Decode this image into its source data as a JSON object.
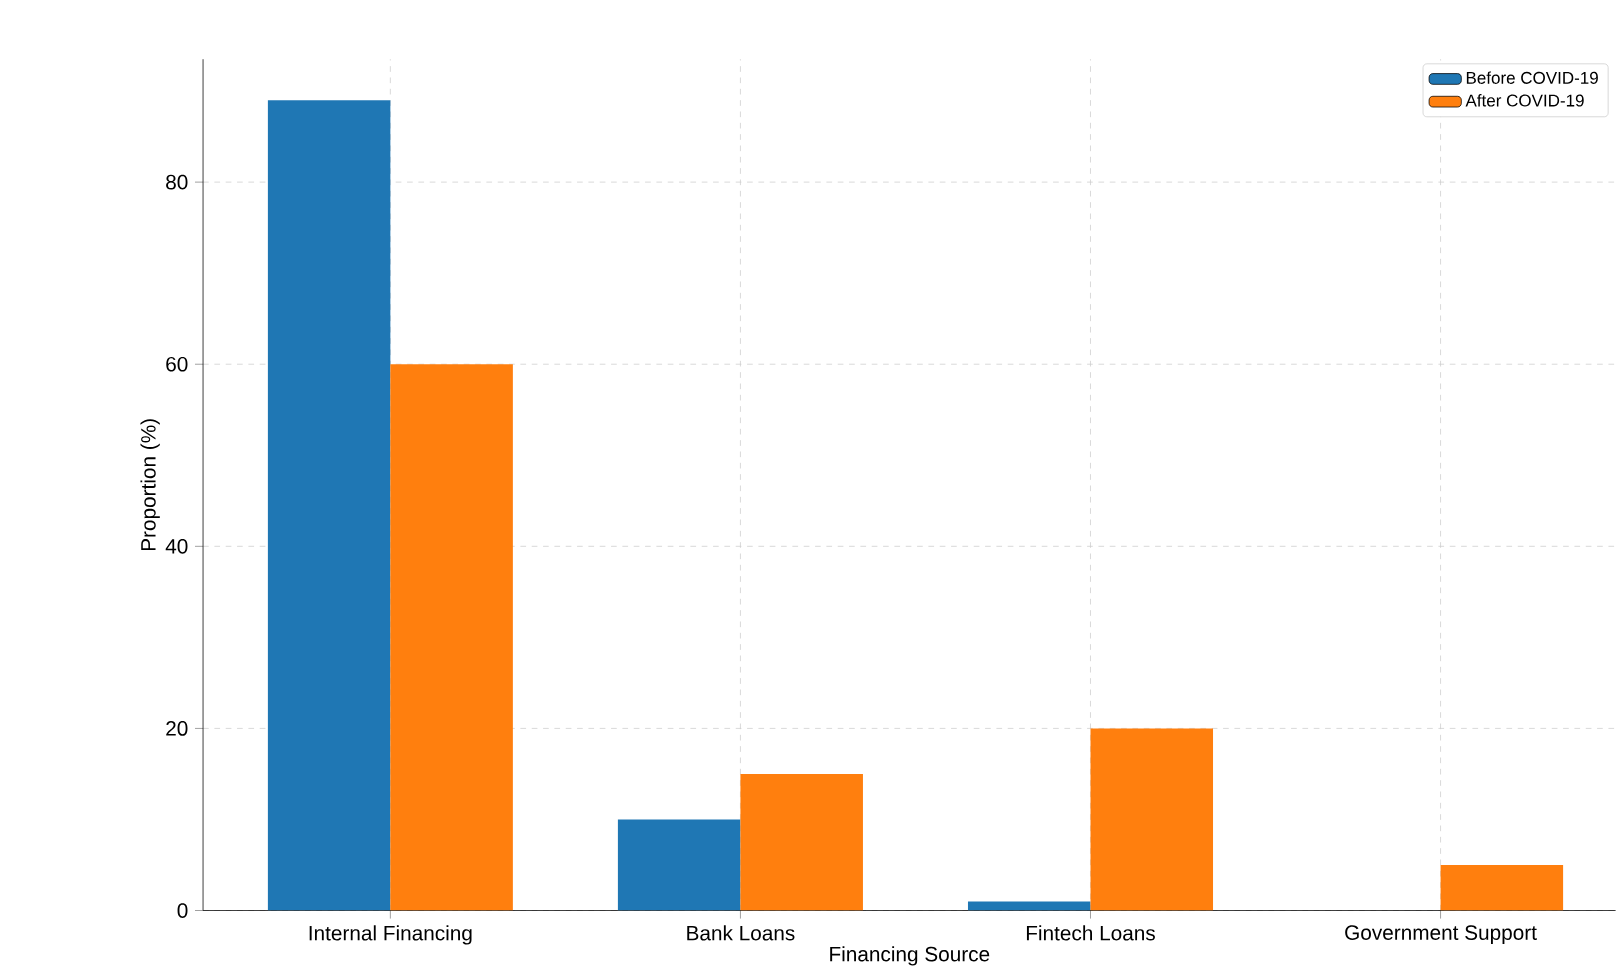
{
  "chart_data": {
    "type": "bar",
    "xlabel": "Financing Source",
    "ylabel": "Proportion (%)",
    "categories": [
      "Internal Financing",
      "Bank Loans",
      "Fintech Loans",
      "Government Support"
    ],
    "series": [
      {
        "name": "Before COVID-19",
        "color": "#1f77b4",
        "values": [
          89,
          10,
          1,
          0
        ]
      },
      {
        "name": "After COVID-19",
        "color": "#ff7f0e",
        "values": [
          60,
          15,
          20,
          5
        ]
      }
    ],
    "ylim": [
      0,
      93.5
    ],
    "yticks": [
      0,
      20,
      40,
      60,
      80
    ],
    "grid": true,
    "legend": "top right"
  }
}
